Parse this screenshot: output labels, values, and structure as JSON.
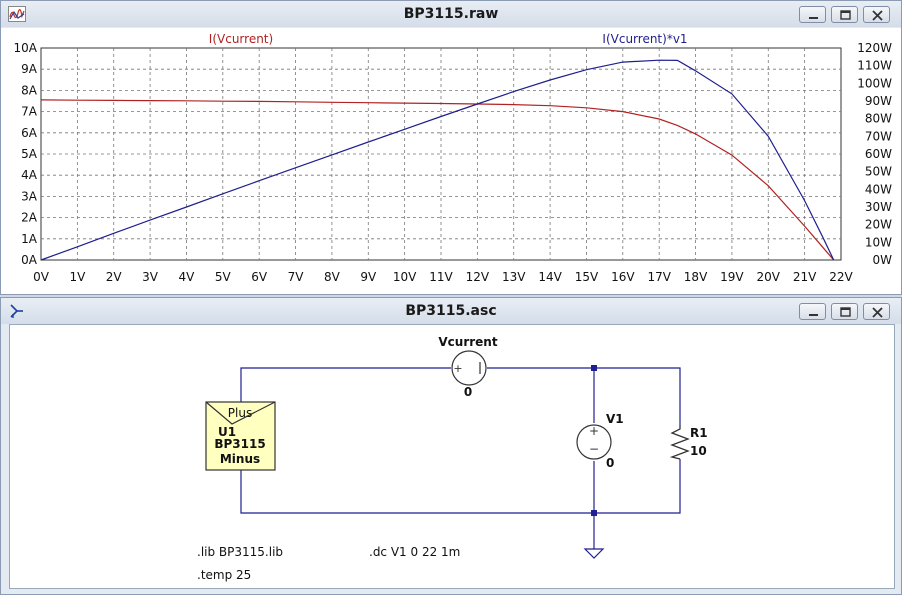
{
  "plot_window": {
    "title": "BP3115.raw",
    "icon": "waveform-icon",
    "buttons": [
      "minimize-icon",
      "maximize-icon",
      "close-icon"
    ]
  },
  "schematic_window": {
    "title": "BP3115.asc",
    "icon": "schematic-icon",
    "buttons": [
      "minimize-icon",
      "maximize-icon",
      "close-icon"
    ],
    "components": {
      "vcurrent": {
        "name": "Vcurrent",
        "value": "0"
      },
      "v1": {
        "name": "V1",
        "value": "0",
        "plus": "+",
        "minus": "−"
      },
      "r1": {
        "name": "R1",
        "value": "10"
      },
      "u1": {
        "plus": "Plus",
        "name": "U1",
        "model": "BP3115",
        "minus": "Minus"
      }
    },
    "directives": {
      "lib": ".lib BP3115.lib",
      "dc": ".dc V1 0 22 1m",
      "temp": ".temp 25"
    }
  },
  "colors": {
    "current_trace": "#b22222",
    "power_trace": "#1f1f8f",
    "wire": "#1f1f8f",
    "grid": "#777777"
  },
  "chart_data": {
    "type": "line",
    "x": [
      0,
      1,
      2,
      3,
      4,
      5,
      6,
      7,
      8,
      9,
      10,
      11,
      12,
      13,
      14,
      15,
      16,
      17,
      17.5,
      18,
      19,
      20,
      21,
      21.5,
      21.8
    ],
    "x_ticks": [
      "0V",
      "1V",
      "2V",
      "3V",
      "4V",
      "5V",
      "6V",
      "7V",
      "8V",
      "9V",
      "10V",
      "11V",
      "12V",
      "13V",
      "14V",
      "15V",
      "16V",
      "17V",
      "18V",
      "19V",
      "20V",
      "21V",
      "22V"
    ],
    "y_left_ticks": [
      "0A",
      "1A",
      "2A",
      "3A",
      "4A",
      "5A",
      "6A",
      "7A",
      "8A",
      "9A",
      "10A"
    ],
    "y_right_ticks": [
      "0W",
      "10W",
      "20W",
      "30W",
      "40W",
      "50W",
      "60W",
      "70W",
      "80W",
      "90W",
      "100W",
      "110W",
      "120W"
    ],
    "xlim": [
      0,
      22
    ],
    "ylim_left": [
      0,
      10
    ],
    "ylim_right": [
      0,
      120
    ],
    "grid": true,
    "series": [
      {
        "name": "I(Vcurrent)",
        "axis": "left",
        "values": [
          7.55,
          7.54,
          7.53,
          7.52,
          7.51,
          7.49,
          7.48,
          7.46,
          7.44,
          7.42,
          7.4,
          7.38,
          7.36,
          7.33,
          7.28,
          7.18,
          7.0,
          6.65,
          6.35,
          5.95,
          4.95,
          3.5,
          1.6,
          0.6,
          0.0
        ]
      },
      {
        "name": "I(Vcurrent)*v1",
        "axis": "right",
        "values": [
          0,
          7.5,
          15.1,
          22.6,
          30.0,
          37.5,
          44.9,
          52.2,
          59.5,
          66.8,
          74.0,
          81.2,
          88.3,
          95.3,
          101.9,
          107.7,
          112.0,
          113.1,
          113.0,
          107.1,
          94.0,
          70.0,
          33.6,
          12.9,
          0
        ]
      }
    ]
  }
}
